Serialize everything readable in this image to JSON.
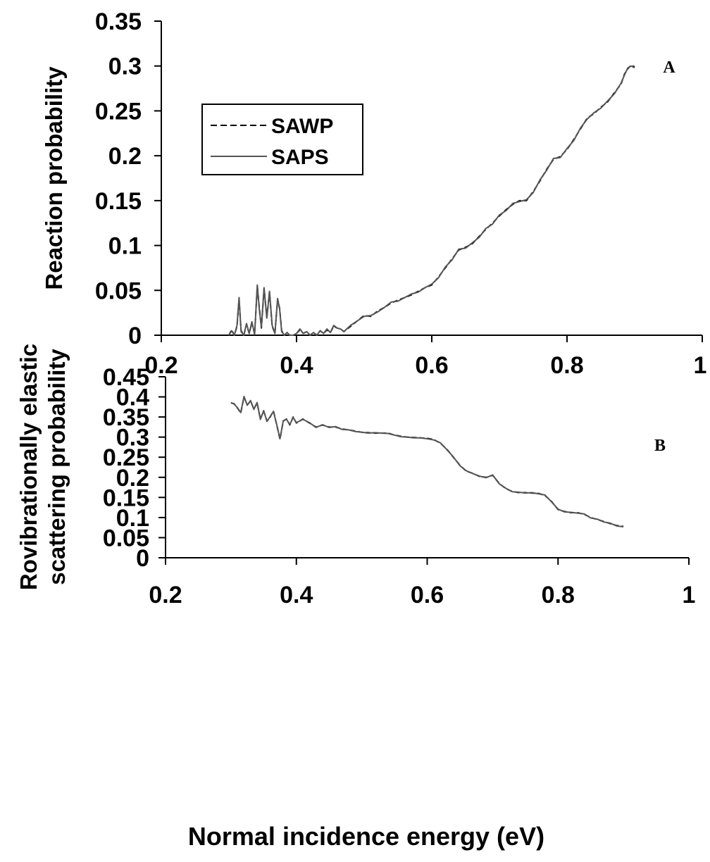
{
  "chart_data": [
    {
      "type": "line",
      "panel_label": "A",
      "ylabel": "Reaction probability",
      "xlabel": "",
      "xlim": [
        0.2,
        1
      ],
      "ylim": [
        0,
        0.35
      ],
      "x_ticks": [
        "0.2",
        "0.4",
        "0.6",
        "0.8",
        "1"
      ],
      "y_ticks": [
        "0",
        "0.05",
        "0.1",
        "0.15",
        "0.2",
        "0.25",
        "0.3",
        "0.35"
      ],
      "grid": false,
      "legend": {
        "position": "top-left",
        "entries": [
          "SAWP",
          "SAPS"
        ]
      },
      "series": [
        {
          "name": "SAWP",
          "color": "#000000",
          "dash": "dashed",
          "x": [
            0.3,
            0.304,
            0.308,
            0.312,
            0.315,
            0.318,
            0.322,
            0.326,
            0.33,
            0.334,
            0.338,
            0.342,
            0.345,
            0.348,
            0.352,
            0.356,
            0.36,
            0.364,
            0.368,
            0.372,
            0.375,
            0.378,
            0.382,
            0.386,
            0.39,
            0.395,
            0.4,
            0.405,
            0.41,
            0.415,
            0.42,
            0.425,
            0.43,
            0.435,
            0.44,
            0.445,
            0.45,
            0.455,
            0.46,
            0.465,
            0.47,
            0.48,
            0.49,
            0.5,
            0.51,
            0.52,
            0.53,
            0.54,
            0.55,
            0.56,
            0.57,
            0.58,
            0.59,
            0.6,
            0.61,
            0.62,
            0.63,
            0.64,
            0.65,
            0.66,
            0.67,
            0.68,
            0.69,
            0.7,
            0.71,
            0.72,
            0.73,
            0.74,
            0.75,
            0.76,
            0.77,
            0.78,
            0.79,
            0.8,
            0.81,
            0.82,
            0.83,
            0.84,
            0.85,
            0.86,
            0.87,
            0.88,
            0.885,
            0.89,
            0.895,
            0.9
          ],
          "y": [
            0.0,
            0.006,
            0.0,
            0.01,
            0.04,
            0.005,
            0.0,
            0.012,
            0.002,
            0.014,
            0.001,
            0.055,
            0.03,
            0.008,
            0.052,
            0.02,
            0.048,
            0.01,
            0.002,
            0.04,
            0.03,
            0.005,
            0.0,
            0.003,
            0.0,
            0.0,
            0.002,
            0.006,
            0.002,
            0.004,
            0.0,
            0.003,
            0.0,
            0.005,
            0.002,
            0.006,
            0.003,
            0.01,
            0.008,
            0.007,
            0.004,
            0.01,
            0.016,
            0.022,
            0.021,
            0.027,
            0.031,
            0.036,
            0.039,
            0.042,
            0.045,
            0.049,
            0.053,
            0.056,
            0.065,
            0.075,
            0.085,
            0.095,
            0.098,
            0.102,
            0.11,
            0.118,
            0.125,
            0.133,
            0.14,
            0.146,
            0.15,
            0.15,
            0.16,
            0.172,
            0.185,
            0.196,
            0.199,
            0.207,
            0.218,
            0.23,
            0.242,
            0.247,
            0.254,
            0.26,
            0.27,
            0.28,
            0.291,
            0.297,
            0.301,
            0.299
          ]
        },
        {
          "name": "SAPS",
          "color": "#555555",
          "dash": "solid",
          "x": [
            0.3,
            0.304,
            0.308,
            0.312,
            0.315,
            0.318,
            0.322,
            0.326,
            0.33,
            0.334,
            0.338,
            0.342,
            0.345,
            0.348,
            0.352,
            0.356,
            0.36,
            0.364,
            0.368,
            0.372,
            0.375,
            0.378,
            0.382,
            0.386,
            0.39,
            0.395,
            0.4,
            0.405,
            0.41,
            0.415,
            0.42,
            0.425,
            0.43,
            0.435,
            0.44,
            0.445,
            0.45,
            0.455,
            0.46,
            0.465,
            0.47,
            0.48,
            0.49,
            0.5,
            0.51,
            0.52,
            0.53,
            0.54,
            0.55,
            0.56,
            0.57,
            0.58,
            0.59,
            0.6,
            0.61,
            0.62,
            0.63,
            0.64,
            0.65,
            0.66,
            0.67,
            0.68,
            0.69,
            0.7,
            0.71,
            0.72,
            0.73,
            0.74,
            0.75,
            0.76,
            0.77,
            0.78,
            0.79,
            0.8,
            0.81,
            0.82,
            0.83,
            0.84,
            0.85,
            0.86,
            0.87,
            0.88,
            0.885,
            0.89,
            0.895,
            0.9
          ],
          "y": [
            0.0,
            0.005,
            0.0,
            0.011,
            0.042,
            0.004,
            0.0,
            0.013,
            0.002,
            0.015,
            0.001,
            0.056,
            0.028,
            0.009,
            0.053,
            0.019,
            0.049,
            0.011,
            0.002,
            0.041,
            0.029,
            0.004,
            0.0,
            0.003,
            0.0,
            0.0,
            0.002,
            0.007,
            0.002,
            0.004,
            0.0,
            0.003,
            0.0,
            0.005,
            0.002,
            0.007,
            0.003,
            0.011,
            0.008,
            0.007,
            0.004,
            0.011,
            0.016,
            0.021,
            0.022,
            0.026,
            0.031,
            0.037,
            0.038,
            0.042,
            0.046,
            0.048,
            0.053,
            0.057,
            0.064,
            0.076,
            0.084,
            0.096,
            0.097,
            0.103,
            0.109,
            0.119,
            0.124,
            0.134,
            0.139,
            0.147,
            0.149,
            0.151,
            0.159,
            0.173,
            0.184,
            0.197,
            0.198,
            0.208,
            0.217,
            0.231,
            0.241,
            0.248,
            0.253,
            0.261,
            0.269,
            0.281,
            0.29,
            0.298,
            0.3,
            0.298
          ]
        }
      ]
    },
    {
      "type": "line",
      "panel_label": "B",
      "ylabel": "Rovibrationally elastic scattering probability",
      "xlabel": "Normal incidence energy (eV)",
      "xlim": [
        0.2,
        1
      ],
      "ylim": [
        0,
        0.45
      ],
      "x_ticks": [
        "0.2",
        "0.4",
        "0.6",
        "0.8",
        "1"
      ],
      "y_ticks": [
        "0",
        "0.05",
        "0.1",
        "0.15",
        "0.2",
        "0.25",
        "0.3",
        "0.35",
        "0.4",
        "0.45"
      ],
      "grid": false,
      "series": [
        {
          "color": "#000000",
          "dash": "dashed",
          "x": [
            0.3,
            0.305,
            0.31,
            0.315,
            0.32,
            0.325,
            0.33,
            0.335,
            0.34,
            0.345,
            0.35,
            0.355,
            0.36,
            0.365,
            0.37,
            0.375,
            0.38,
            0.385,
            0.39,
            0.395,
            0.4,
            0.41,
            0.42,
            0.43,
            0.44,
            0.45,
            0.46,
            0.47,
            0.48,
            0.49,
            0.5,
            0.51,
            0.52,
            0.53,
            0.54,
            0.55,
            0.56,
            0.57,
            0.58,
            0.59,
            0.6,
            0.61,
            0.62,
            0.63,
            0.64,
            0.65,
            0.66,
            0.67,
            0.68,
            0.69,
            0.7,
            0.71,
            0.72,
            0.73,
            0.74,
            0.75,
            0.76,
            0.77,
            0.78,
            0.79,
            0.8,
            0.81,
            0.82,
            0.83,
            0.84,
            0.85,
            0.86,
            0.87,
            0.88,
            0.89,
            0.9
          ],
          "y": [
            0.385,
            0.383,
            0.372,
            0.36,
            0.4,
            0.38,
            0.39,
            0.37,
            0.385,
            0.345,
            0.365,
            0.34,
            0.35,
            0.365,
            0.33,
            0.295,
            0.34,
            0.345,
            0.33,
            0.35,
            0.335,
            0.345,
            0.335,
            0.325,
            0.33,
            0.325,
            0.325,
            0.32,
            0.318,
            0.315,
            0.312,
            0.311,
            0.31,
            0.31,
            0.31,
            0.305,
            0.302,
            0.3,
            0.299,
            0.298,
            0.297,
            0.294,
            0.285,
            0.27,
            0.25,
            0.23,
            0.215,
            0.21,
            0.202,
            0.2,
            0.205,
            0.185,
            0.172,
            0.165,
            0.162,
            0.162,
            0.161,
            0.16,
            0.155,
            0.14,
            0.12,
            0.115,
            0.112,
            0.112,
            0.108,
            0.1,
            0.095,
            0.09,
            0.085,
            0.08,
            0.078
          ]
        },
        {
          "color": "#555555",
          "dash": "solid",
          "x": [
            0.3,
            0.305,
            0.31,
            0.315,
            0.32,
            0.325,
            0.33,
            0.335,
            0.34,
            0.345,
            0.35,
            0.355,
            0.36,
            0.365,
            0.37,
            0.375,
            0.38,
            0.385,
            0.39,
            0.395,
            0.4,
            0.41,
            0.42,
            0.43,
            0.44,
            0.45,
            0.46,
            0.47,
            0.48,
            0.49,
            0.5,
            0.51,
            0.52,
            0.53,
            0.54,
            0.55,
            0.56,
            0.57,
            0.58,
            0.59,
            0.6,
            0.61,
            0.62,
            0.63,
            0.64,
            0.65,
            0.66,
            0.67,
            0.68,
            0.69,
            0.7,
            0.71,
            0.72,
            0.73,
            0.74,
            0.75,
            0.76,
            0.77,
            0.78,
            0.79,
            0.8,
            0.81,
            0.82,
            0.83,
            0.84,
            0.85,
            0.86,
            0.87,
            0.88,
            0.89,
            0.9
          ],
          "y": [
            0.386,
            0.382,
            0.373,
            0.361,
            0.401,
            0.379,
            0.391,
            0.369,
            0.386,
            0.344,
            0.366,
            0.339,
            0.351,
            0.364,
            0.331,
            0.296,
            0.341,
            0.344,
            0.331,
            0.349,
            0.336,
            0.344,
            0.336,
            0.324,
            0.331,
            0.324,
            0.326,
            0.319,
            0.318,
            0.314,
            0.312,
            0.31,
            0.311,
            0.31,
            0.309,
            0.305,
            0.301,
            0.3,
            0.298,
            0.298,
            0.296,
            0.293,
            0.286,
            0.269,
            0.251,
            0.229,
            0.216,
            0.209,
            0.203,
            0.199,
            0.206,
            0.184,
            0.173,
            0.164,
            0.163,
            0.161,
            0.162,
            0.159,
            0.156,
            0.139,
            0.121,
            0.114,
            0.113,
            0.111,
            0.109,
            0.099,
            0.096,
            0.089,
            0.086,
            0.079,
            0.077
          ]
        }
      ]
    }
  ]
}
